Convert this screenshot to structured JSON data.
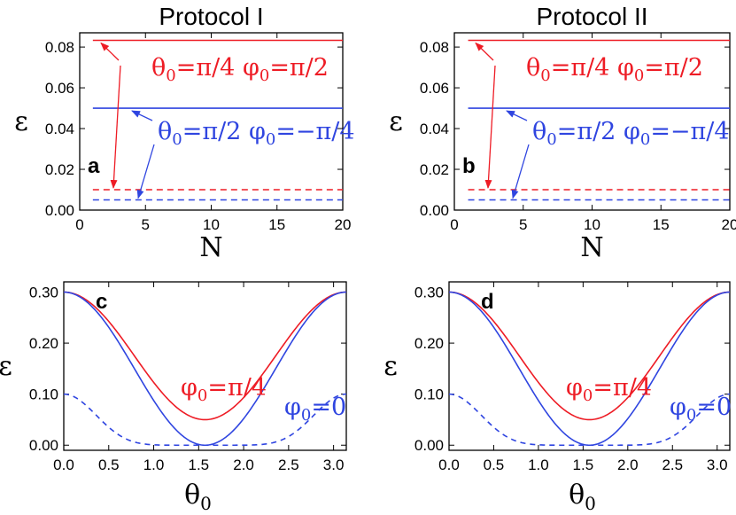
{
  "chart_data": [
    {
      "id": "a",
      "type": "line",
      "title": "Protocol I",
      "panel_label": "a",
      "xlabel": "N",
      "ylabel": "ε",
      "xlim": [
        0,
        20
      ],
      "ylim": [
        0,
        0.087
      ],
      "xticks": [
        0,
        5,
        10,
        15,
        20
      ],
      "yticks": [
        0.0,
        0.02,
        0.04,
        0.06,
        0.08
      ],
      "ytick_labels": [
        "0.00",
        "0.02",
        "0.04",
        "0.06",
        "0.08"
      ],
      "series": [
        {
          "name": "θ0=π/4 φ0=π/2",
          "color": "#ee1c25",
          "style": "solid",
          "x": [
            1,
            20
          ],
          "y": [
            0.0833,
            0.0833
          ]
        },
        {
          "name": "θ0=π/2 φ0=−π/4",
          "color": "#2f45e0",
          "style": "solid",
          "x": [
            1,
            20
          ],
          "y": [
            0.05,
            0.05
          ]
        },
        {
          "name": "θ0=π/4 φ0=π/2 (dashed)",
          "color": "#ee1c25",
          "style": "dashed",
          "x": [
            1,
            20
          ],
          "y": [
            0.01,
            0.01
          ]
        },
        {
          "name": "θ0=π/2 φ0=−π/4 (dashed)",
          "color": "#2f45e0",
          "style": "dashed",
          "x": [
            1,
            20
          ],
          "y": [
            0.005,
            0.005
          ]
        }
      ],
      "annotations": [
        {
          "text_theta": "θ",
          "sub_theta": "0",
          "text_a": "=π/4 ",
          "text_phi": "φ",
          "sub_phi": "0",
          "text_b": "=π/2",
          "color": "#ee1c25"
        },
        {
          "text_theta": "θ",
          "sub_theta": "0",
          "text_a": "=π/2 ",
          "text_phi": "φ",
          "sub_phi": "0",
          "text_b": "=−π/4",
          "color": "#2f45e0"
        }
      ]
    },
    {
      "id": "b",
      "type": "line",
      "title": "Protocol II",
      "panel_label": "b",
      "xlabel": "N",
      "ylabel": "ε",
      "xlim": [
        0,
        20
      ],
      "ylim": [
        0,
        0.087
      ],
      "xticks": [
        0,
        5,
        10,
        15,
        20
      ],
      "yticks": [
        0.0,
        0.02,
        0.04,
        0.06,
        0.08
      ],
      "ytick_labels": [
        "0.00",
        "0.02",
        "0.04",
        "0.06",
        "0.08"
      ],
      "series": [
        {
          "name": "θ0=π/4 φ0=π/2",
          "color": "#ee1c25",
          "style": "solid",
          "x": [
            1,
            20
          ],
          "y": [
            0.0833,
            0.0833
          ]
        },
        {
          "name": "θ0=π/2 φ0=−π/4",
          "color": "#2f45e0",
          "style": "solid",
          "x": [
            1,
            20
          ],
          "y": [
            0.05,
            0.05
          ]
        },
        {
          "name": "θ0=π/4 φ0=π/2 (dashed)",
          "color": "#ee1c25",
          "style": "dashed",
          "x": [
            1,
            20
          ],
          "y": [
            0.01,
            0.01
          ]
        },
        {
          "name": "θ0=π/2 φ0=−π/4 (dashed)",
          "color": "#2f45e0",
          "style": "dashed",
          "x": [
            1,
            20
          ],
          "y": [
            0.005,
            0.005
          ]
        }
      ],
      "annotations": [
        {
          "text_theta": "θ",
          "sub_theta": "0",
          "text_a": "=π/4 ",
          "text_phi": "φ",
          "sub_phi": "0",
          "text_b": "=π/2",
          "color": "#ee1c25"
        },
        {
          "text_theta": "θ",
          "sub_theta": "0",
          "text_a": "=π/2 ",
          "text_phi": "φ",
          "sub_phi": "0",
          "text_b": "=−π/4",
          "color": "#2f45e0"
        }
      ]
    },
    {
      "id": "c",
      "type": "line",
      "panel_label": "c",
      "xlabel_main": "θ",
      "xlabel_sub": "0",
      "ylabel": "ε",
      "xlim": [
        0,
        3.1416
      ],
      "ylim": [
        -0.01,
        0.32
      ],
      "xticks": [
        0.0,
        0.5,
        1.0,
        1.5,
        2.0,
        2.5,
        3.0
      ],
      "xtick_labels": [
        "0.0",
        "0.5",
        "1.0",
        "1.5",
        "2.0",
        "2.5",
        "3.0"
      ],
      "yticks": [
        0.0,
        0.1,
        0.2,
        0.3
      ],
      "ytick_labels": [
        "0.00",
        "0.10",
        "0.20",
        "0.30"
      ],
      "series": [
        {
          "name": "φ0=π/4",
          "color": "#ee1c25",
          "style": "solid",
          "formula": "0.05+0.25*cos^2(theta)"
        },
        {
          "name": "φ0=0",
          "color": "#2f45e0",
          "style": "solid",
          "formula": "0.3*cos^2(theta)"
        },
        {
          "name": "φ0=0 (dashed)",
          "color": "#2f45e0",
          "style": "dashed",
          "formula": "0.1*cos^8(theta)"
        }
      ],
      "annotations": [
        {
          "text": "φ",
          "sub": "0",
          "rest": "=π/4",
          "color": "#ee1c25"
        },
        {
          "text": "φ",
          "sub": "0",
          "rest": "=0",
          "color": "#2f45e0"
        }
      ]
    },
    {
      "id": "d",
      "type": "line",
      "panel_label": "d",
      "xlabel_main": "θ",
      "xlabel_sub": "0",
      "ylabel": "ε",
      "xlim": [
        0,
        3.1416
      ],
      "ylim": [
        -0.01,
        0.32
      ],
      "xticks": [
        0.0,
        0.5,
        1.0,
        1.5,
        2.0,
        2.5,
        3.0
      ],
      "xtick_labels": [
        "0.0",
        "0.5",
        "1.0",
        "1.5",
        "2.0",
        "2.5",
        "3.0"
      ],
      "yticks": [
        0.0,
        0.1,
        0.2,
        0.3
      ],
      "ytick_labels": [
        "0.00",
        "0.10",
        "0.20",
        "0.30"
      ],
      "series": [
        {
          "name": "φ0=π/4",
          "color": "#ee1c25",
          "style": "solid",
          "formula": "0.05+0.25*cos^2(theta)"
        },
        {
          "name": "φ0=0",
          "color": "#2f45e0",
          "style": "solid",
          "formula": "0.3*cos^2(theta)"
        },
        {
          "name": "φ0=0 (dashed)",
          "color": "#2f45e0",
          "style": "dashed",
          "formula": "0.1*cos^8(theta)"
        }
      ],
      "annotations": [
        {
          "text": "φ",
          "sub": "0",
          "rest": "=π/4",
          "color": "#ee1c25"
        },
        {
          "text": "φ",
          "sub": "0",
          "rest": "=0",
          "color": "#2f45e0"
        }
      ]
    }
  ]
}
